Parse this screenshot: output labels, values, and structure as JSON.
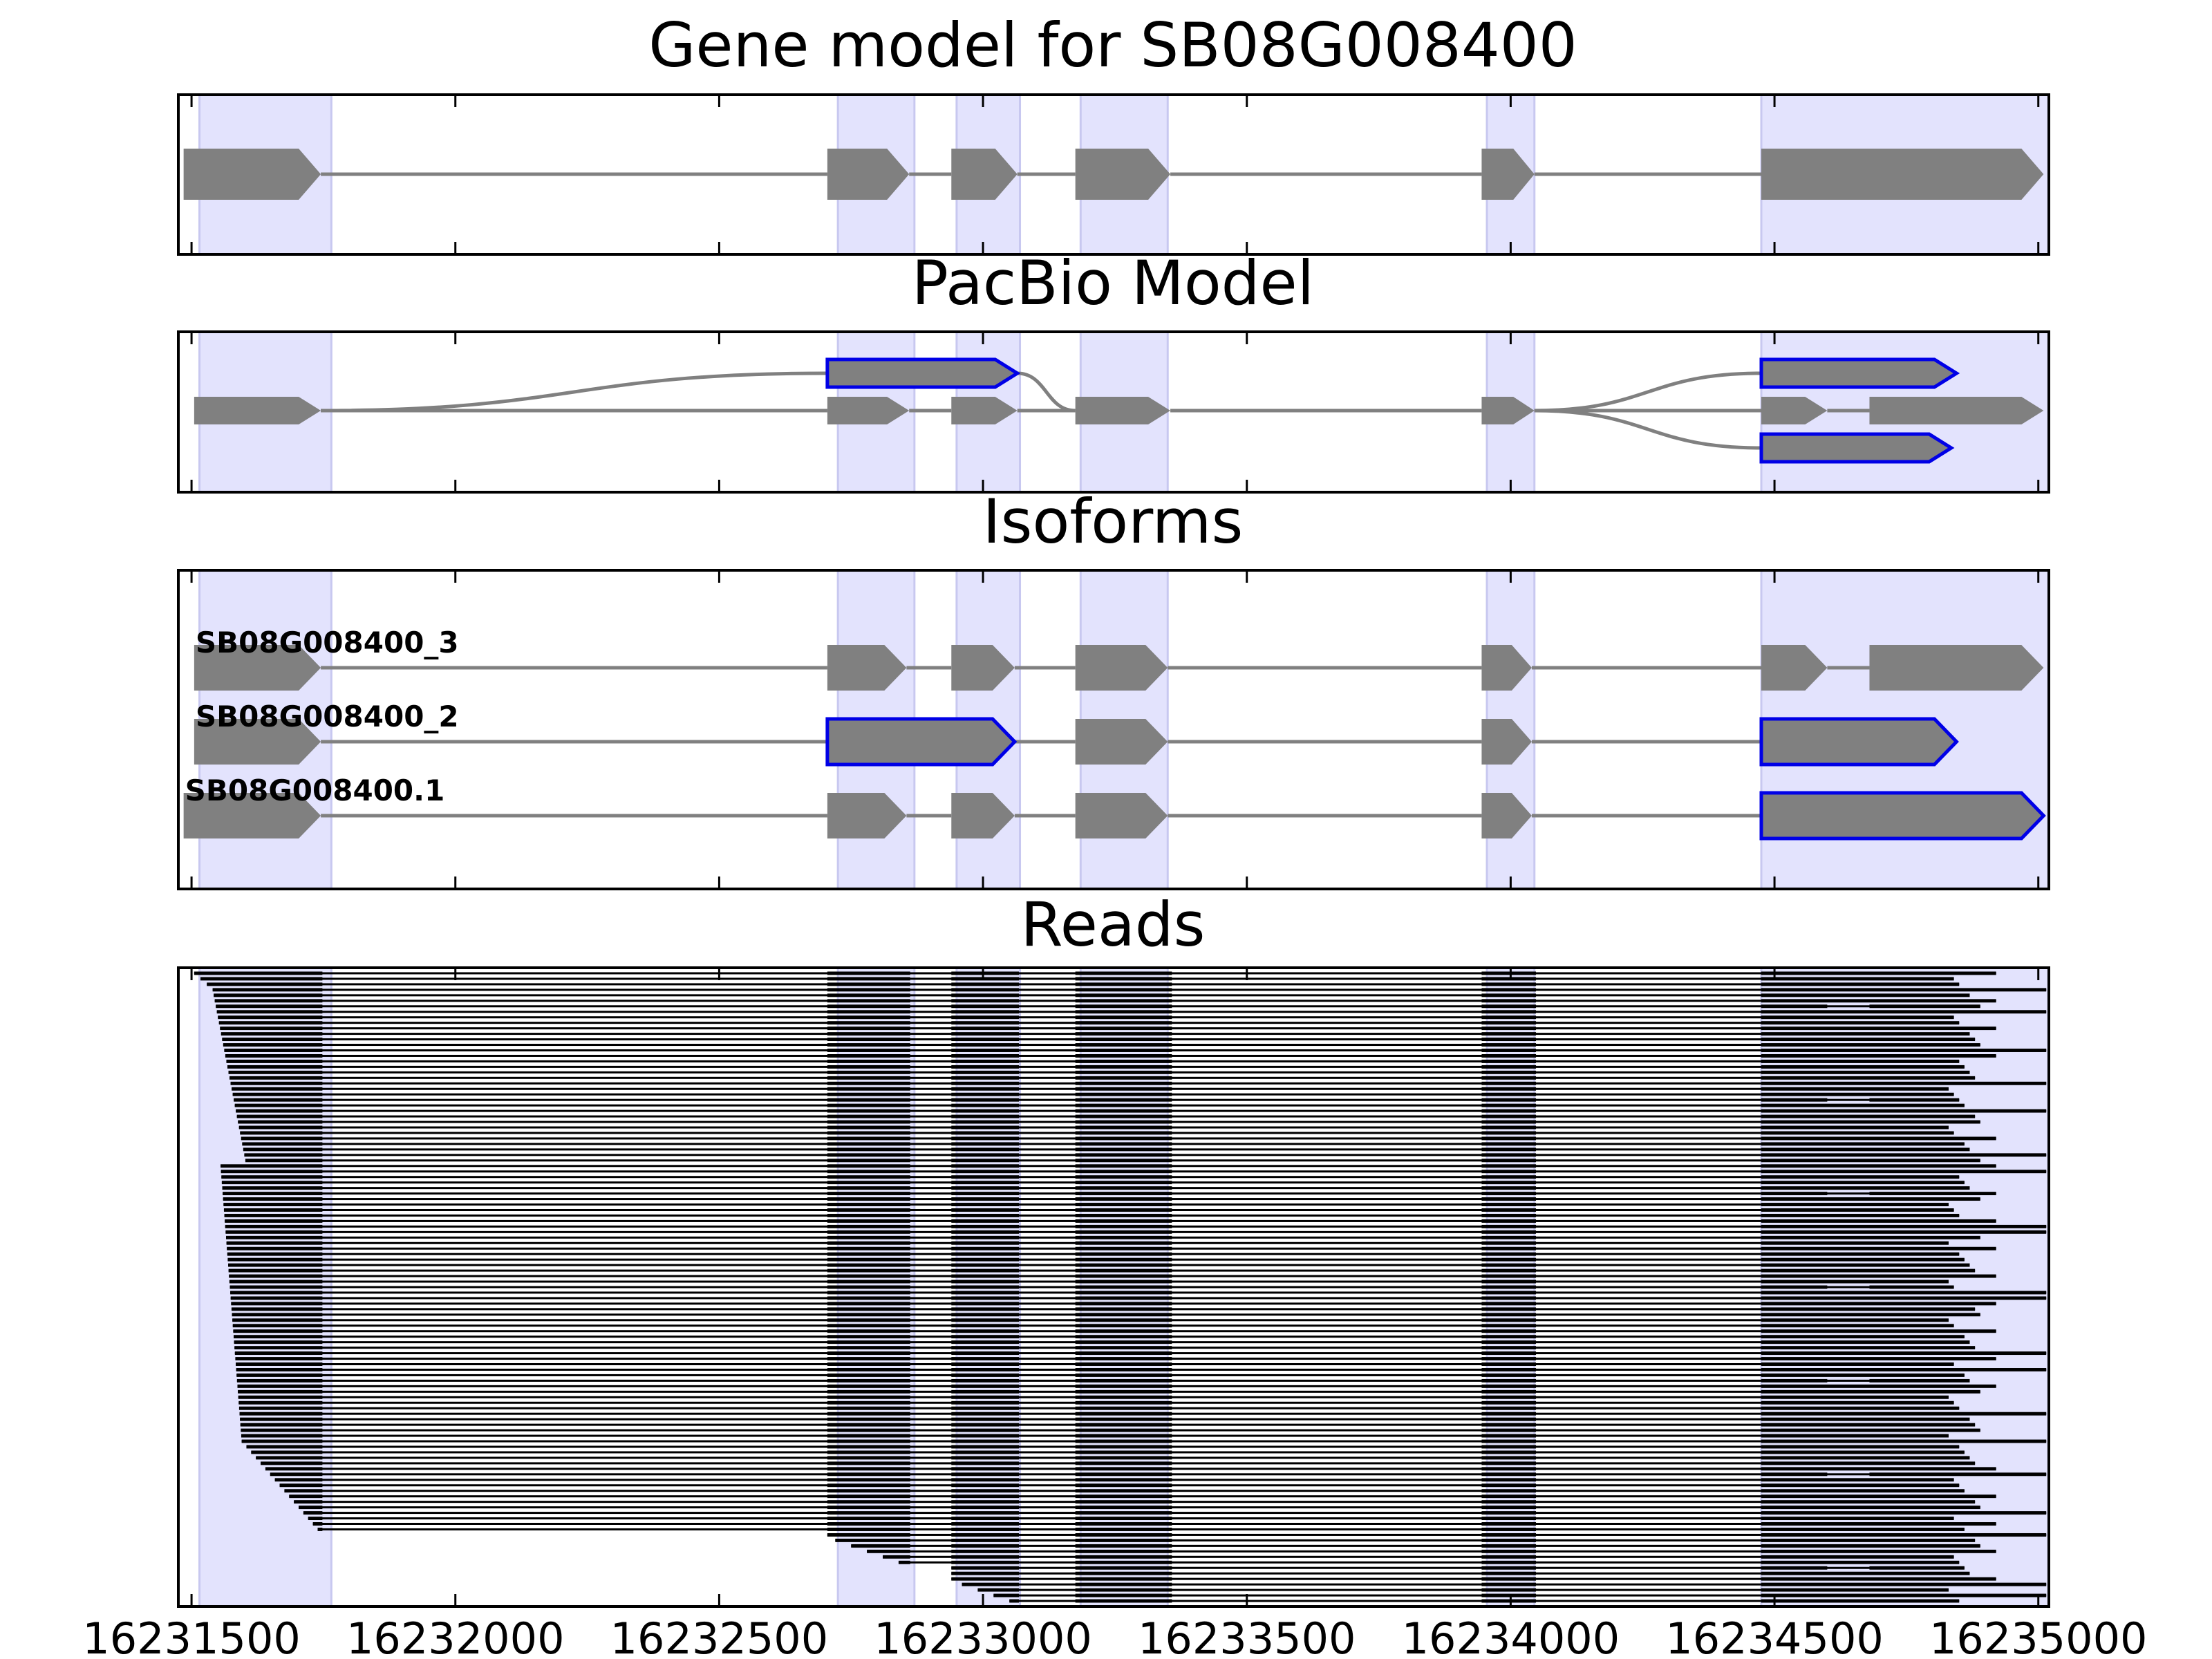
{
  "figure": {
    "gene_id": "SB08G008400",
    "x_range": [
      16231475,
      16235020
    ],
    "x_ticks": [
      {
        "value": 16231500,
        "label": "16231500"
      },
      {
        "value": 16232000,
        "label": "16232000"
      },
      {
        "value": 16232500,
        "label": "16232500"
      },
      {
        "value": 16233000,
        "label": "16233000"
      },
      {
        "value": 16233500,
        "label": "16233500"
      },
      {
        "value": 16234000,
        "label": "16234000"
      },
      {
        "value": 16234500,
        "label": "16234500"
      },
      {
        "value": 16235000,
        "label": "16235000"
      }
    ],
    "exon_regions": [
      [
        16231515,
        16231765
      ],
      [
        16232725,
        16232870
      ],
      [
        16232950,
        16233070
      ],
      [
        16233185,
        16233350
      ],
      [
        16233955,
        16234045
      ],
      [
        16234475,
        16235020
      ]
    ],
    "colors": {
      "box_fill": "#808080",
      "highlight_edge": "#0000e6",
      "region_fill": "#e3e3fd",
      "region_edge": "#c8c8f0",
      "read": "#000000"
    }
  },
  "panels": {
    "gene_model": {
      "title": "Gene model for SB08G008400",
      "exons": [
        [
          16231485,
          16231745
        ],
        [
          16232705,
          16232860
        ],
        [
          16232940,
          16233065
        ],
        [
          16233175,
          16233355
        ],
        [
          16233945,
          16234045
        ],
        [
          16234475,
          16235010
        ]
      ]
    },
    "pacbio_model": {
      "title": "PacBio Model",
      "lanes": [
        {
          "lane": 1,
          "exons": [
            [
              16231505,
              16231745
            ],
            [
              16232705,
              16232860
            ],
            [
              16232940,
              16233065
            ],
            [
              16233175,
              16233355
            ],
            [
              16233945,
              16234045
            ],
            [
              16234475,
              16234600
            ],
            [
              16234680,
              16235010
            ]
          ]
        },
        {
          "lane": 0,
          "highlight": true,
          "exons": [
            [
              16232705,
              16233065
            ]
          ]
        },
        {
          "lane": 0,
          "highlight": true,
          "exons": [
            [
              16234475,
              16234845
            ]
          ]
        },
        {
          "lane": 2,
          "highlight": true,
          "exons": [
            [
              16234475,
              16234835
            ]
          ]
        }
      ]
    },
    "isoforms": {
      "title": "Isoforms",
      "items": [
        {
          "name": "SB08G008400_3",
          "exons": [
            [
              16231505,
              16231745
            ],
            [
              16232705,
              16232855
            ],
            [
              16232940,
              16233060
            ],
            [
              16233175,
              16233350
            ],
            [
              16233945,
              16234040
            ],
            [
              16234475,
              16234600
            ],
            [
              16234680,
              16235010
            ]
          ],
          "highlight": []
        },
        {
          "name": "SB08G008400_2",
          "exons": [
            [
              16231505,
              16231745
            ],
            [
              16232705,
              16233060
            ],
            [
              16233175,
              16233350
            ],
            [
              16233945,
              16234040
            ],
            [
              16234475,
              16234845
            ]
          ],
          "highlight": [
            1,
            4
          ]
        },
        {
          "name": "SB08G008400.1",
          "exons": [
            [
              16231485,
              16231745
            ],
            [
              16232705,
              16232855
            ],
            [
              16232940,
              16233060
            ],
            [
              16233175,
              16233350
            ],
            [
              16233945,
              16234040
            ],
            [
              16234475,
              16235010
            ]
          ],
          "highlight": [
            5
          ]
        }
      ]
    },
    "reads": {
      "title": "Reads",
      "count": 115
    }
  }
}
